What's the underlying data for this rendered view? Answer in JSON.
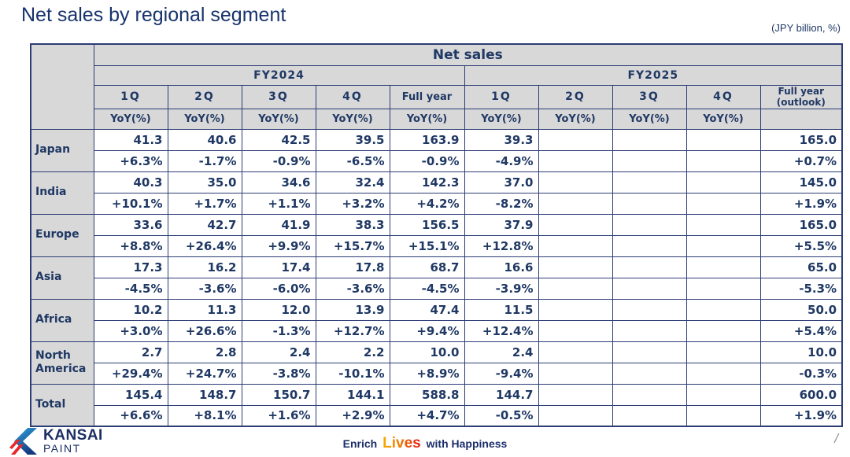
{
  "slide": {
    "title": "Net sales by regional segment",
    "unit_note": "(JPY billion, %)",
    "page_separator": "/"
  },
  "table": {
    "title": "Net sales",
    "yoy_label": "YoY(%)",
    "fy2024": {
      "label": "FY2024",
      "quarters": [
        "1Q",
        "2Q",
        "3Q",
        "4Q"
      ],
      "full_year": "Full year"
    },
    "fy2025": {
      "label": "FY2025",
      "quarters": [
        "1Q",
        "2Q",
        "3Q",
        "4Q"
      ],
      "full_year": "Full year",
      "full_year_sub": "(outlook)"
    },
    "rows": [
      {
        "region": "Japan",
        "values": [
          "41.3",
          "40.6",
          "42.5",
          "39.5",
          "163.9",
          "39.3",
          "",
          "",
          "",
          "165.0"
        ],
        "yoy": [
          "+6.3%",
          "-1.7%",
          "-0.9%",
          "-6.5%",
          "-0.9%",
          "-4.9%",
          "",
          "",
          "",
          "+0.7%"
        ]
      },
      {
        "region": "India",
        "values": [
          "40.3",
          "35.0",
          "34.6",
          "32.4",
          "142.3",
          "37.0",
          "",
          "",
          "",
          "145.0"
        ],
        "yoy": [
          "+10.1%",
          "+1.7%",
          "+1.1%",
          "+3.2%",
          "+4.2%",
          "-8.2%",
          "",
          "",
          "",
          "+1.9%"
        ]
      },
      {
        "region": "Europe",
        "values": [
          "33.6",
          "42.7",
          "41.9",
          "38.3",
          "156.5",
          "37.9",
          "",
          "",
          "",
          "165.0"
        ],
        "yoy": [
          "+8.8%",
          "+26.4%",
          "+9.9%",
          "+15.7%",
          "+15.1%",
          "+12.8%",
          "",
          "",
          "",
          "+5.5%"
        ]
      },
      {
        "region": "Asia",
        "values": [
          "17.3",
          "16.2",
          "17.4",
          "17.8",
          "68.7",
          "16.6",
          "",
          "",
          "",
          "65.0"
        ],
        "yoy": [
          "-4.5%",
          "-3.6%",
          "-6.0%",
          "-3.6%",
          "-4.5%",
          "-3.9%",
          "",
          "",
          "",
          "-5.3%"
        ]
      },
      {
        "region": "Africa",
        "values": [
          "10.2",
          "11.3",
          "12.0",
          "13.9",
          "47.4",
          "11.5",
          "",
          "",
          "",
          "50.0"
        ],
        "yoy": [
          "+3.0%",
          "+26.6%",
          "-1.3%",
          "+12.7%",
          "+9.4%",
          "+12.4%",
          "",
          "",
          "",
          "+5.4%"
        ]
      },
      {
        "region": "North America",
        "values": [
          "2.7",
          "2.8",
          "2.4",
          "2.2",
          "10.0",
          "2.4",
          "",
          "",
          "",
          "10.0"
        ],
        "yoy": [
          "+29.4%",
          "+24.7%",
          "-3.8%",
          "-10.1%",
          "+8.9%",
          "-9.4%",
          "",
          "",
          "",
          "-0.3%"
        ]
      },
      {
        "region": "Total",
        "values": [
          "145.4",
          "148.7",
          "150.7",
          "144.1",
          "588.8",
          "144.7",
          "",
          "",
          "",
          "600.0"
        ],
        "yoy": [
          "+6.6%",
          "+8.1%",
          "+1.6%",
          "+2.9%",
          "+4.7%",
          "-0.5%",
          "",
          "",
          "",
          "+1.9%"
        ]
      }
    ]
  },
  "footer": {
    "logo_name": "KANSAI",
    "logo_sub": "PAINT",
    "tagline_1": "Enrich",
    "tagline_2": "Lives",
    "tagline_3": "with Happiness"
  },
  "colors": {
    "navy_text": "#1f3864",
    "border_navy": "#2c3c74",
    "header_gray": "#d8d8d8",
    "logo_blue": "#29abe2",
    "logo_red": "#e8272d",
    "lives_orange": "#ee7c00"
  }
}
